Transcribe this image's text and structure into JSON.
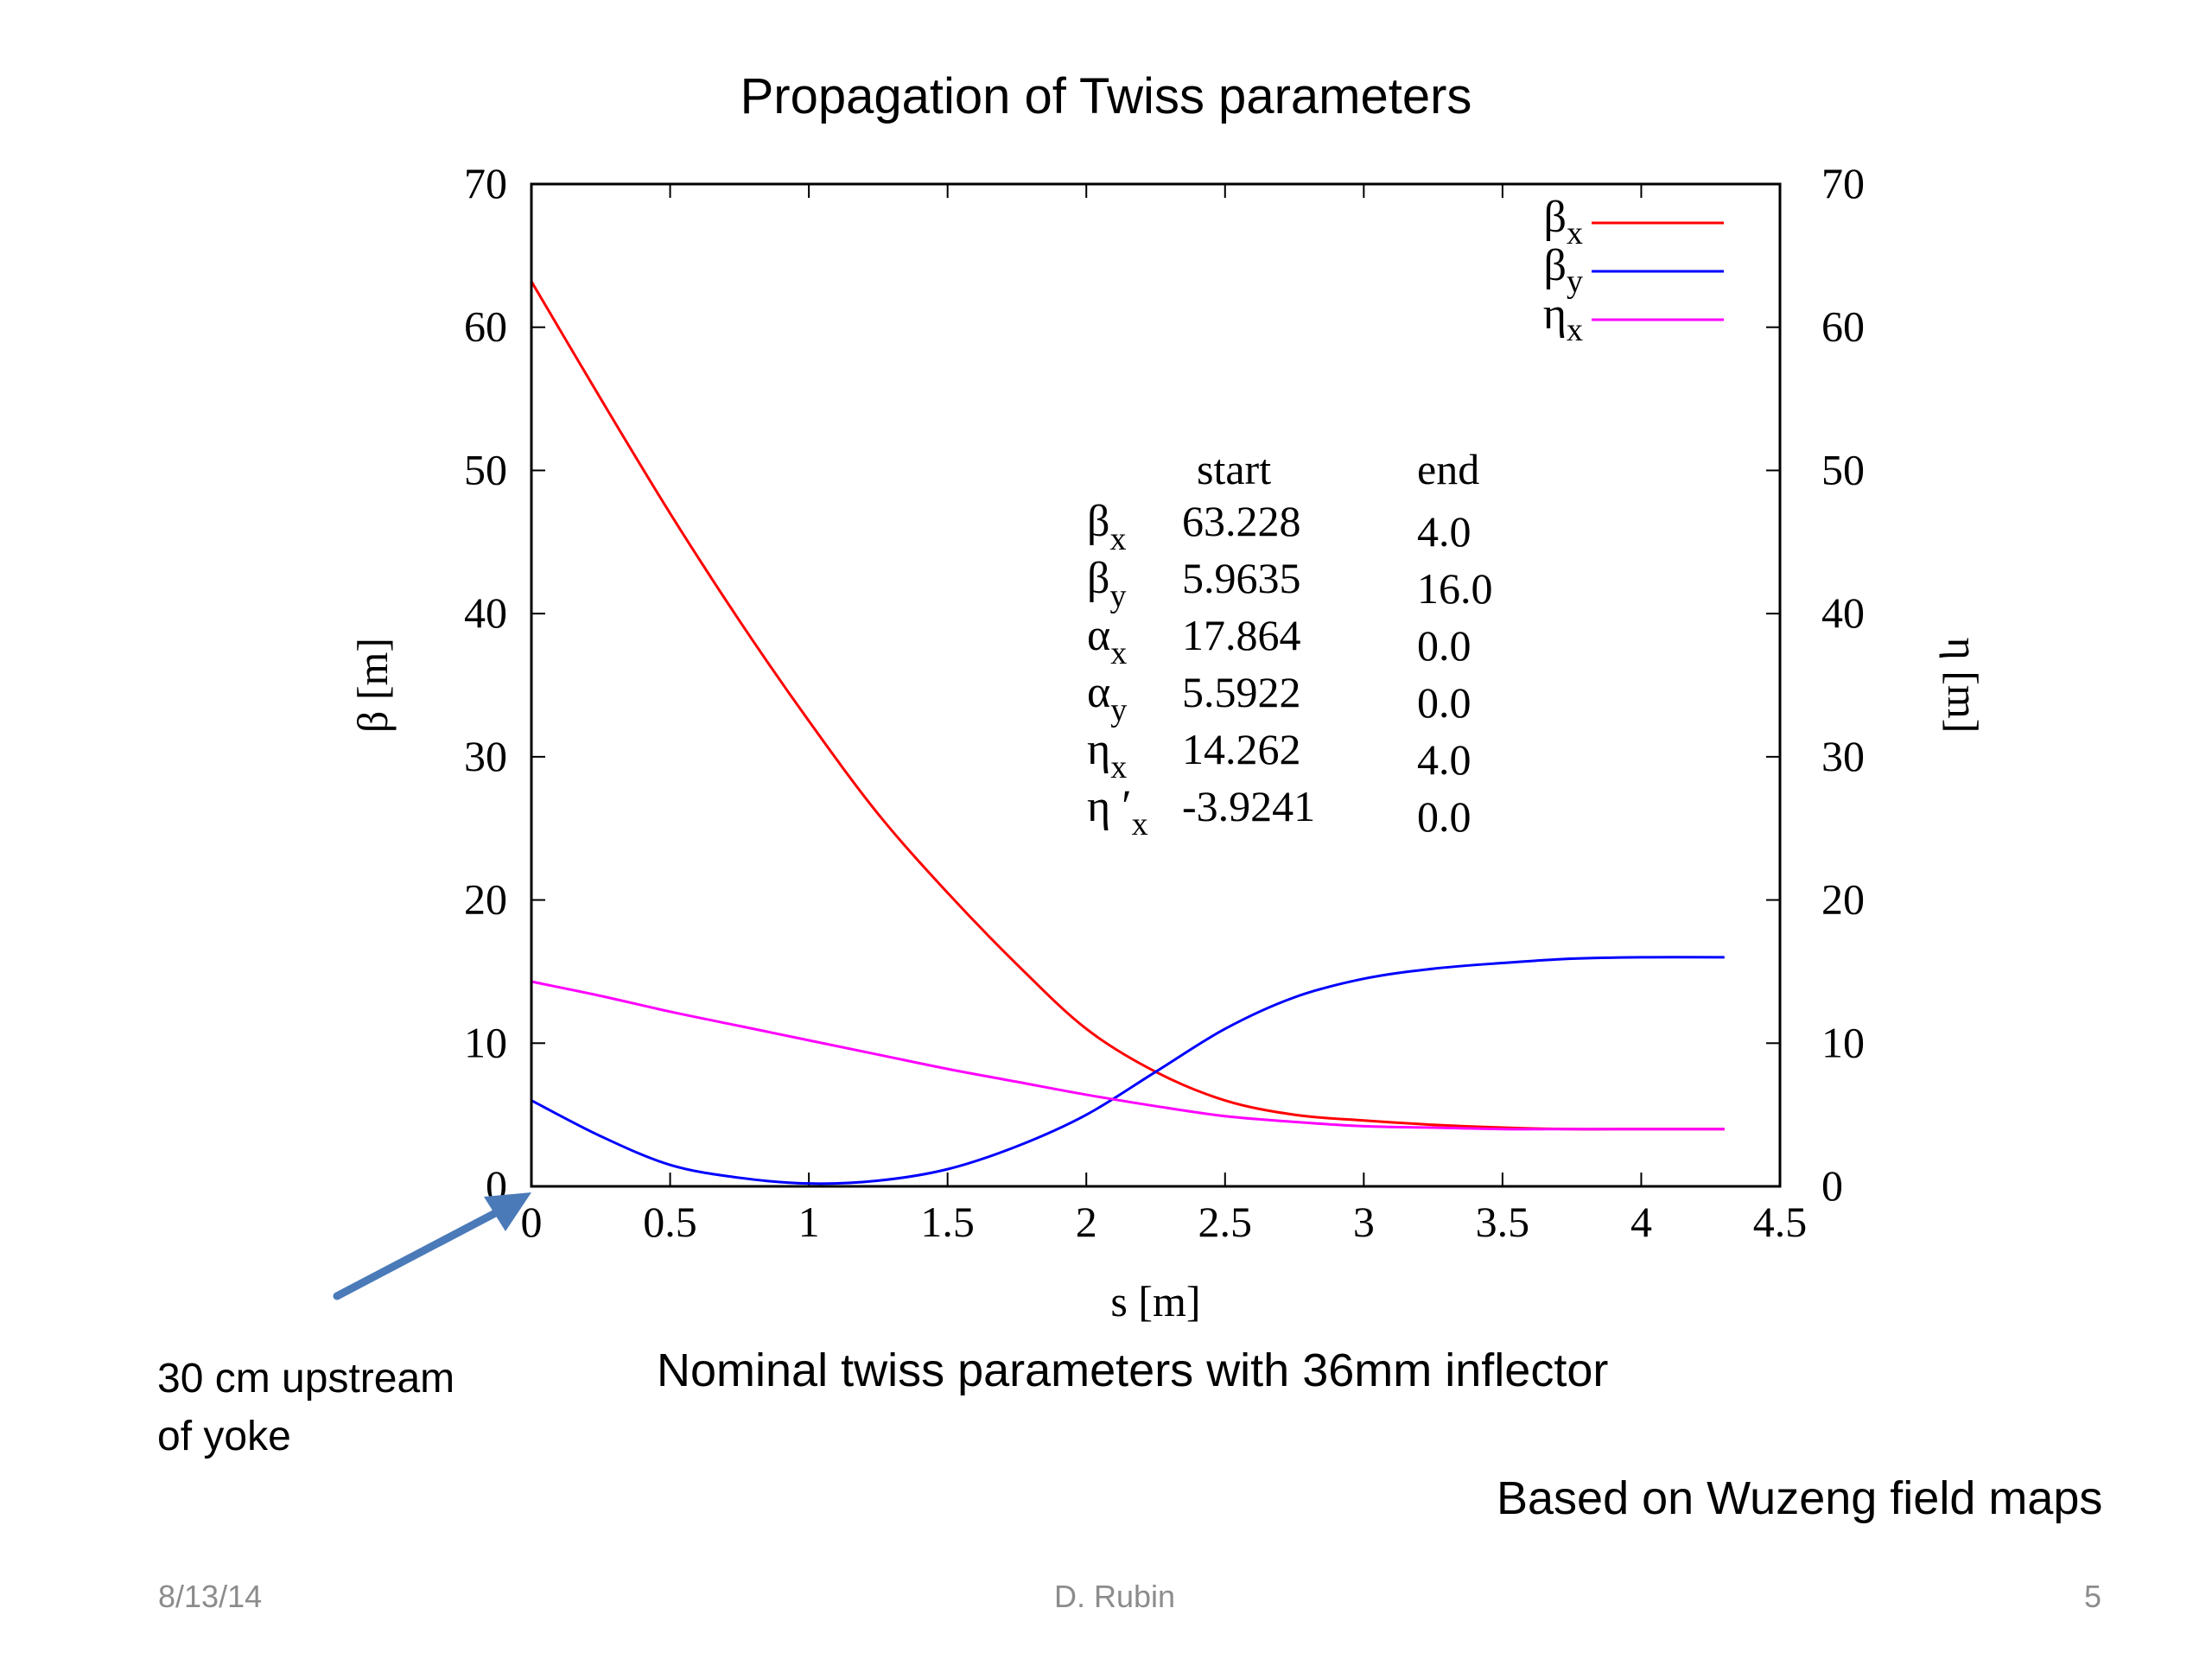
{
  "slide": {
    "title": "Propagation of Twiss parameters",
    "caption_main": "Nominal twiss parameters with 36mm inflector",
    "caption_left_line1": "30 cm upstream",
    "caption_left_line2": "of yoke",
    "caption_right": "Based on Wuzeng field maps",
    "footer_date": "8/13/14",
    "footer_author": "D. Rubin",
    "footer_page": "5"
  },
  "colors": {
    "beta_x": "#ff0000",
    "beta_y": "#0000ff",
    "eta_x": "#ff00ff",
    "arrow": "#4a7ab8"
  },
  "chart_data": {
    "type": "line",
    "xlabel": "s [m]",
    "ylabel": "β [m]",
    "y2label": "η [m]",
    "xlim": [
      0,
      4.5
    ],
    "ylim": [
      0,
      70
    ],
    "y2lim": [
      0,
      70
    ],
    "xticks": [
      "0",
      "0.5",
      "1",
      "1.5",
      "2",
      "2.5",
      "3",
      "3.5",
      "4",
      "4.5"
    ],
    "yticks": [
      "0",
      "10",
      "20",
      "30",
      "40",
      "50",
      "60",
      "70"
    ],
    "y2ticks": [
      "0",
      "10",
      "20",
      "30",
      "40",
      "50",
      "60",
      "70"
    ],
    "legend_position": "top-right",
    "series": [
      {
        "name": "βx",
        "base": "β",
        "sub": "x",
        "color_key": "beta_x",
        "x": [
          0,
          0.25,
          0.5,
          0.75,
          1.0,
          1.25,
          1.5,
          1.75,
          2.0,
          2.25,
          2.5,
          2.75,
          3.0,
          3.25,
          3.5,
          3.75,
          4.0,
          4.3
        ],
        "y": [
          63.2,
          55.0,
          47.0,
          39.5,
          32.5,
          26.0,
          20.5,
          15.5,
          11.0,
          8.0,
          6.0,
          5.0,
          4.6,
          4.3,
          4.1,
          4.0,
          4.0,
          4.0
        ]
      },
      {
        "name": "βy",
        "base": "β",
        "sub": "y",
        "color_key": "beta_y",
        "x": [
          0,
          0.25,
          0.5,
          0.75,
          1.0,
          1.25,
          1.5,
          1.75,
          2.0,
          2.25,
          2.5,
          2.75,
          3.0,
          3.25,
          3.5,
          3.75,
          4.0,
          4.3
        ],
        "y": [
          6.0,
          3.5,
          1.5,
          0.6,
          0.2,
          0.4,
          1.2,
          2.8,
          5.0,
          8.0,
          11.0,
          13.2,
          14.5,
          15.2,
          15.6,
          15.9,
          16.0,
          16.0
        ]
      },
      {
        "name": "ηx",
        "base": "η",
        "sub": "x",
        "color_key": "eta_x",
        "x": [
          0,
          0.25,
          0.5,
          0.75,
          1.0,
          1.25,
          1.5,
          1.75,
          2.0,
          2.25,
          2.5,
          2.75,
          3.0,
          3.25,
          3.5,
          3.75,
          4.0,
          4.3
        ],
        "y": [
          14.3,
          13.3,
          12.2,
          11.2,
          10.2,
          9.2,
          8.2,
          7.3,
          6.4,
          5.6,
          4.9,
          4.5,
          4.2,
          4.1,
          4.0,
          4.0,
          4.0,
          4.0
        ]
      }
    ],
    "annotation_table": {
      "header_start": "start",
      "header_end": "end",
      "rows": [
        {
          "base": "β",
          "sub": "x",
          "start": "63.228",
          "end": "4.0"
        },
        {
          "base": "β",
          "sub": "y",
          "start": "5.9635",
          "end": "16.0"
        },
        {
          "base": "α",
          "sub": "x",
          "start": "17.864",
          "end": "0.0"
        },
        {
          "base": "α",
          "sub": "y",
          "start": "5.5922",
          "end": "0.0"
        },
        {
          "base": "η",
          "sub": "x",
          "start": "14.262",
          "end": "4.0"
        },
        {
          "base": "η ′",
          "sub": "x",
          "start": "-3.9241",
          "end": "0.0"
        }
      ]
    }
  }
}
